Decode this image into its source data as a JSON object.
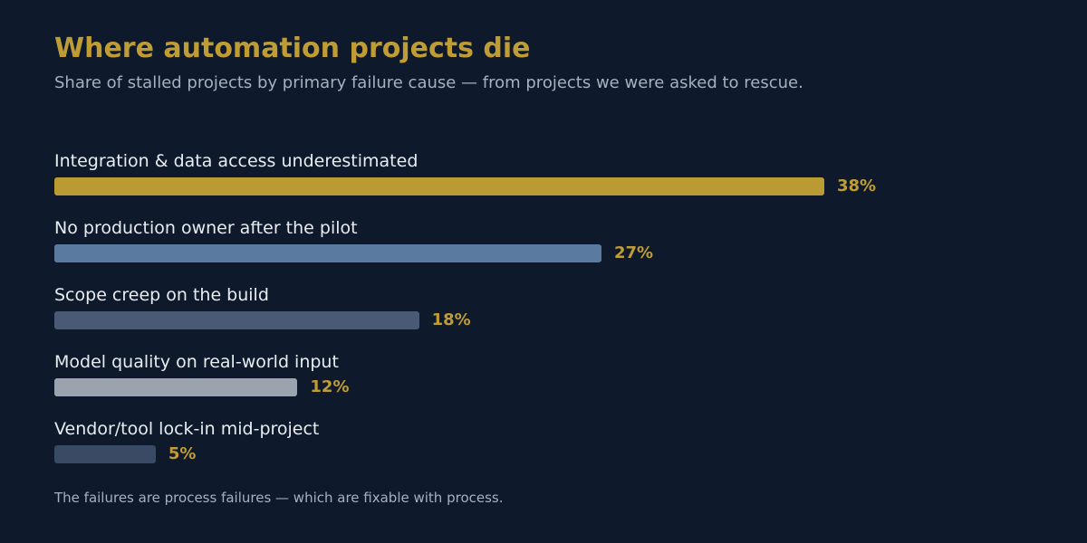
{
  "title": "Where automation projects die",
  "subtitle": "Share of stalled projects by primary failure cause — from projects we were asked to rescue.",
  "footnote": "The failures are process failures — which are fixable with process.",
  "chart_data": {
    "type": "bar",
    "orientation": "horizontal",
    "categories": [
      "Integration & data access underestimated",
      "No production owner after the pilot",
      "Scope creep on the build",
      "Model quality on real-world input",
      "Vendor/tool lock-in mid-project"
    ],
    "values": [
      38,
      27,
      18,
      12,
      5
    ],
    "value_labels": [
      "38%",
      "27%",
      "18%",
      "12%",
      "5%"
    ],
    "unit": "%",
    "bar_colors": [
      "#b99a33",
      "#5b7aa0",
      "#4a5a74",
      "#9aa3ae",
      "#3a4a64"
    ],
    "value_label_color": "#c09c35",
    "grid": false
  }
}
